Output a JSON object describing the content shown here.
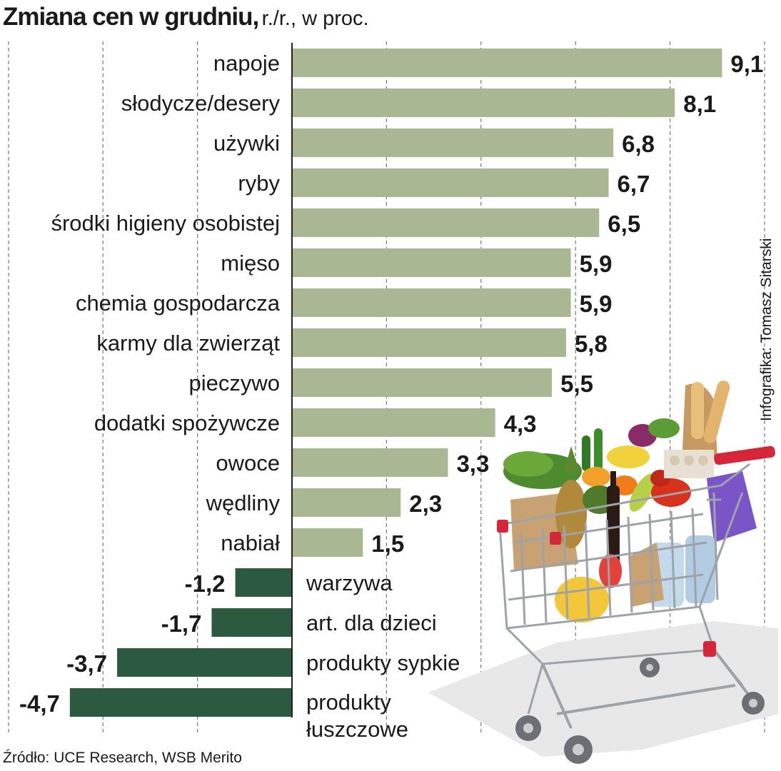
{
  "title": "Zmiana cen w grudniu,",
  "subtitle": "r./r., w proc.",
  "source": "Źródło: UCE Research, WSB Merito",
  "credit": "Infografika: Tomasz Sitarski",
  "colors": {
    "positive": "#a9b892",
    "negative": "#2b5a40",
    "grid": "#777777",
    "axis": "#222222"
  },
  "illustration": "shopping-cart-with-groceries",
  "chart_data": {
    "type": "bar",
    "orientation": "horizontal",
    "title": "Zmiana cen w grudniu,",
    "subtitle": "r./r., w proc.",
    "categories": [
      "napoje",
      "słodycze/desery",
      "używki",
      "ryby",
      "środki higieny osobistej",
      "mięso",
      "chemia gospodarcza",
      "karmy dla zwierząt",
      "pieczywo",
      "dodatki spożywcze",
      "owoce",
      "wędliny",
      "nabiał",
      "warzywa",
      "art. dla dzieci",
      "produkty sypkie",
      "produkty\nłuszczowe"
    ],
    "values": [
      9.1,
      8.1,
      6.8,
      6.7,
      6.5,
      5.9,
      5.9,
      5.8,
      5.5,
      4.3,
      3.3,
      2.3,
      1.5,
      -1.2,
      -1.7,
      -3.7,
      -4.7
    ],
    "value_labels": [
      "9,1",
      "8,1",
      "6,8",
      "6,7",
      "6,5",
      "5,9",
      "5,9",
      "5,8",
      "5,5",
      "4,3",
      "3,3",
      "2,3",
      "1,5",
      "-1,2",
      "-1,7",
      "-3,7",
      "-4,7"
    ],
    "xlim": [
      -6,
      10
    ],
    "grid": true,
    "grid_style": "dashed-vertical",
    "grid_values": [
      -4,
      -2,
      2,
      4,
      6,
      8,
      10
    ]
  }
}
